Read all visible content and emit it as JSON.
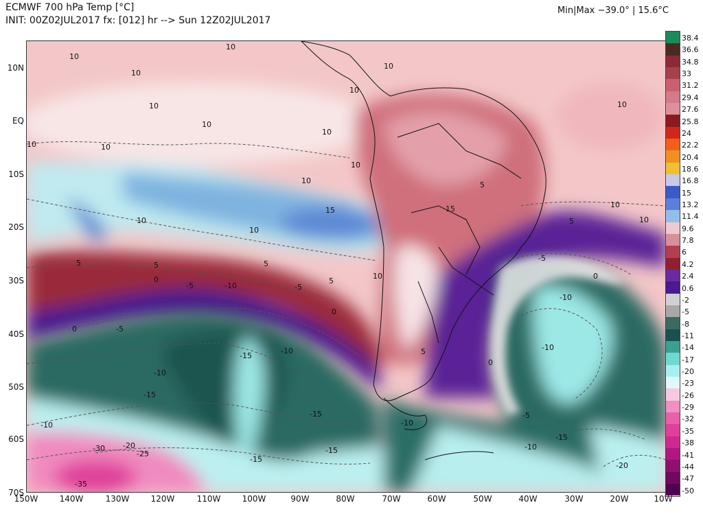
{
  "header": {
    "title": "ECMWF 700 hPa Temp [°C]",
    "init": "INIT: 00Z02JUL2017 fx: [012] hr --> Sun 12Z02JUL2017",
    "minmax": "Min|Max −39.0° | 15.6°C"
  },
  "axes": {
    "lat_labels": [
      "10N",
      "EQ",
      "10S",
      "20S",
      "30S",
      "40S",
      "50S",
      "60S",
      "70S"
    ],
    "lon_labels": [
      "150W",
      "140W",
      "130W",
      "120W",
      "110W",
      "100W",
      "90W",
      "80W",
      "70W",
      "60W",
      "50W",
      "40W",
      "30W",
      "20W",
      "10W"
    ]
  },
  "colorbar": {
    "labels": [
      "38.4",
      "36.6",
      "34.8",
      "33",
      "31.2",
      "29.4",
      "27.6",
      "25.8",
      "24",
      "22.2",
      "20.4",
      "18.6",
      "16.8",
      "15",
      "13.2",
      "11.4",
      "9.6",
      "7.8",
      "6",
      "4.2",
      "2.4",
      "0.6",
      "-2",
      "-5",
      "-8",
      "-11",
      "-14",
      "-17",
      "-20",
      "-23",
      "-26",
      "-29",
      "-32",
      "-35",
      "-38",
      "-41",
      "-44",
      "-47",
      "-50"
    ],
    "colors": [
      "#1a8a5a",
      "#4a2a20",
      "#8a2a38",
      "#a8404a",
      "#c86070",
      "#d47a88",
      "#e0909c",
      "#8a1a20",
      "#d02818",
      "#f06018",
      "#f09020",
      "#f0c030",
      "#c8c8e8",
      "#3a5ac8",
      "#5a80d8",
      "#90c0e8",
      "#f0c8d0",
      "#d8909a",
      "#b04050",
      "#902030",
      "#6a2aa0",
      "#4a1a90",
      "#d0d0d0",
      "#a8a8a8",
      "#3a6a60",
      "#1a5050",
      "#3aa090",
      "#70d8d0",
      "#a8f0f0",
      "#e0f8f8",
      "#f8c8e0",
      "#f090c0",
      "#e860a8",
      "#e04098",
      "#d02890",
      "#b01880",
      "#901070",
      "#700860",
      "#500050"
    ]
  },
  "contours": [
    {
      "label": "10"
    },
    {
      "label": "10"
    },
    {
      "label": "10"
    },
    {
      "label": "10"
    },
    {
      "label": "10"
    },
    {
      "label": "10"
    },
    {
      "label": "10"
    },
    {
      "label": "10"
    },
    {
      "label": "10"
    },
    {
      "label": "10"
    },
    {
      "label": "10"
    },
    {
      "label": "10"
    },
    {
      "label": "10"
    },
    {
      "label": "10"
    },
    {
      "label": "10"
    },
    {
      "label": "10"
    },
    {
      "label": "10"
    },
    {
      "label": "10"
    },
    {
      "label": "15"
    },
    {
      "label": "15"
    },
    {
      "label": "5"
    },
    {
      "label": "5"
    },
    {
      "label": "5"
    },
    {
      "label": "5"
    },
    {
      "label": "5"
    },
    {
      "label": "5"
    },
    {
      "label": "5"
    },
    {
      "label": "0"
    },
    {
      "label": "0"
    },
    {
      "label": "0"
    },
    {
      "label": "0"
    },
    {
      "label": "0"
    },
    {
      "label": "-5"
    },
    {
      "label": "-5"
    },
    {
      "label": "-5"
    },
    {
      "label": "-5"
    },
    {
      "label": "-5"
    },
    {
      "label": "-10"
    },
    {
      "label": "-10"
    },
    {
      "label": "-10"
    },
    {
      "label": "-10"
    },
    {
      "label": "-10"
    },
    {
      "label": "-10"
    },
    {
      "label": "-10"
    },
    {
      "label": "-10"
    },
    {
      "label": "-15"
    },
    {
      "label": "-15"
    },
    {
      "label": "-15"
    },
    {
      "label": "-15"
    },
    {
      "label": "-15"
    },
    {
      "label": "-15"
    },
    {
      "label": "-20"
    },
    {
      "label": "-20"
    },
    {
      "label": "-25"
    },
    {
      "label": "-30"
    },
    {
      "label": "-35"
    }
  ]
}
